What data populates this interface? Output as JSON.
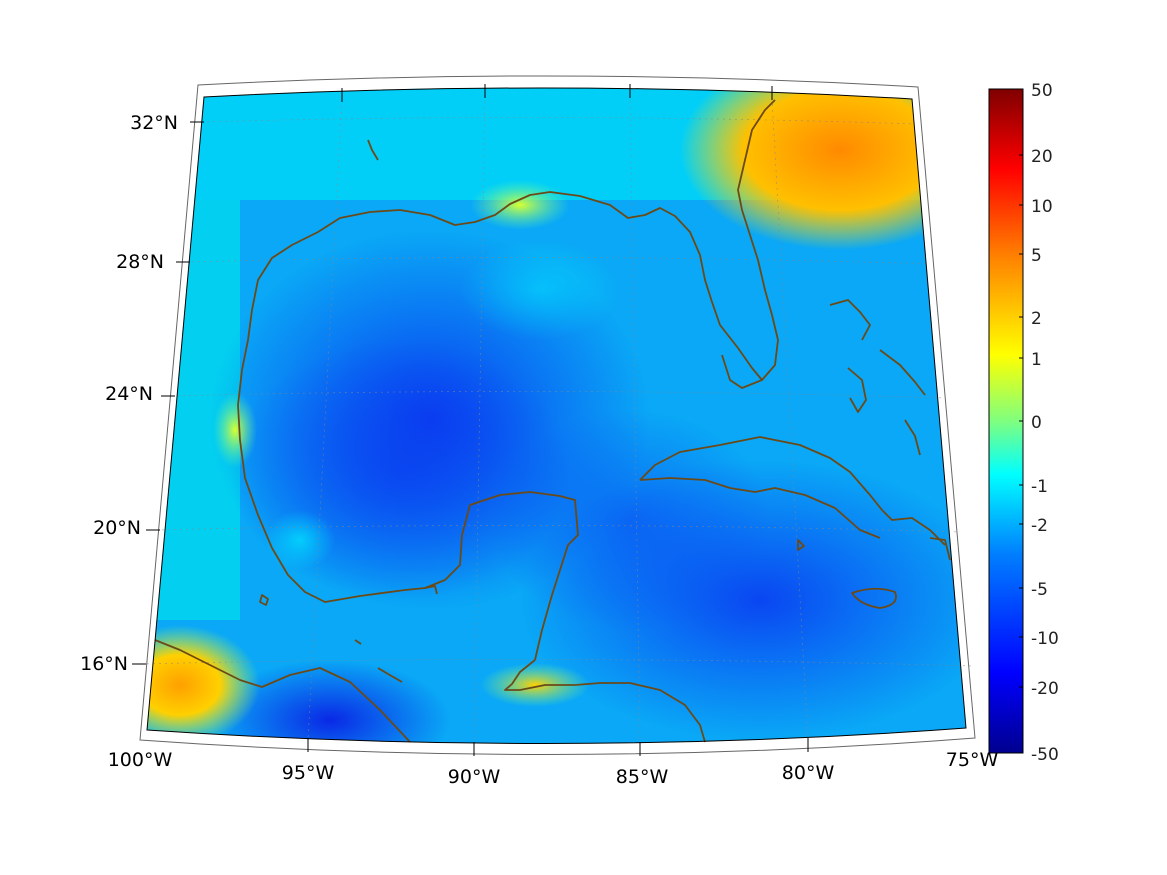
{
  "map": {
    "projection": "conic",
    "lat_labels": [
      "32°N",
      "28°N",
      "24°N",
      "20°N",
      "16°N"
    ],
    "lon_labels": [
      "100°W",
      "95°W",
      "90°W",
      "85°W",
      "80°W",
      "75°W"
    ],
    "coastline_color": "#6b4a18",
    "grid": "dotted"
  },
  "colorbar": {
    "labels": [
      "50",
      "20",
      "10",
      "5",
      "2",
      "1",
      "0",
      "-1",
      "-2",
      "-5",
      "-10",
      "-20",
      "-50"
    ],
    "colormap": "jet",
    "colors": [
      "#00008f",
      "#0000ff",
      "#007fff",
      "#00ffff",
      "#7fff7f",
      "#ffff00",
      "#ff7f00",
      "#ff0000",
      "#7f0000"
    ]
  }
}
